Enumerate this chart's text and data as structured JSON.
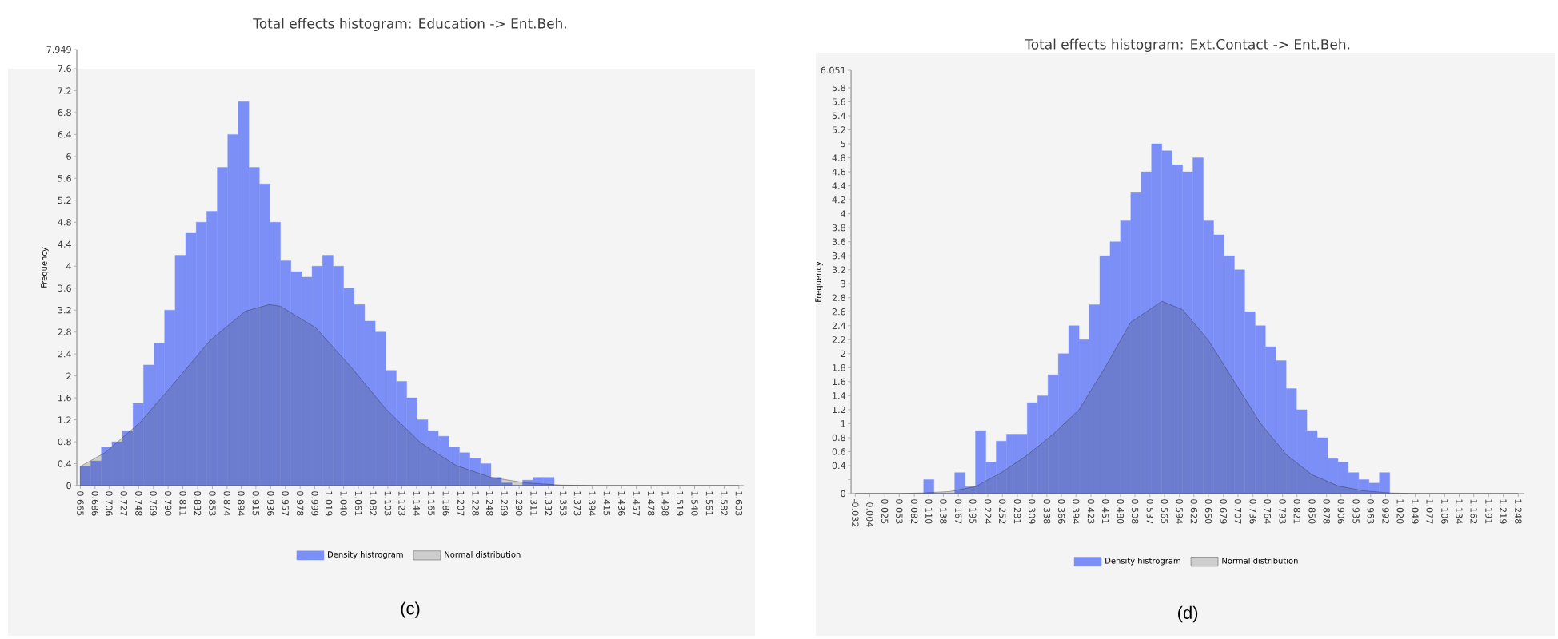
{
  "chart_data": [
    {
      "type": "histogram",
      "title": "Total effects histogram: Education -> Ent.Beh.",
      "ylabel": "Frequency",
      "legend": "bottom",
      "annotations": [
        "(c)"
      ],
      "bins": [
        0.665,
        0.68,
        0.695,
        0.71,
        0.725,
        0.74,
        0.755,
        0.77,
        0.785,
        0.8,
        0.815,
        0.83,
        0.845,
        0.86,
        0.875,
        0.89,
        0.905,
        0.92,
        0.935,
        0.95,
        0.965,
        0.98,
        0.995,
        1.01,
        1.025,
        1.04,
        1.055,
        1.07,
        1.085,
        1.1,
        1.115,
        1.13,
        1.145,
        1.16,
        1.175,
        1.19,
        1.205,
        1.22,
        1.235,
        1.25,
        1.265,
        1.28,
        1.295,
        1.31,
        1.325,
        1.34
      ],
      "series": [
        {
          "name": "Density histrogram",
          "color": "#7b8ff7",
          "values": [
            0.35,
            0.45,
            0.7,
            0.8,
            1.0,
            1.5,
            2.2,
            2.6,
            3.2,
            4.2,
            4.6,
            4.8,
            5.0,
            5.8,
            6.4,
            7.0,
            5.8,
            5.5,
            4.8,
            4.1,
            3.9,
            3.8,
            4.0,
            4.2,
            4.0,
            3.6,
            3.3,
            3.0,
            2.8,
            2.1,
            1.9,
            1.6,
            1.2,
            1.0,
            0.9,
            0.7,
            0.6,
            0.5,
            0.4,
            0.15,
            0.05,
            0,
            0.1,
            0.15,
            0.15
          ]
        },
        {
          "name": "Normal distribution",
          "type": "area",
          "color": "#303030",
          "x": [
            0.665,
            0.7,
            0.75,
            0.8,
            0.85,
            0.9,
            0.934,
            0.95,
            1.0,
            1.05,
            1.1,
            1.15,
            1.2,
            1.25,
            1.3,
            1.35,
            1.4,
            1.603
          ],
          "values": [
            0.35,
            0.6,
            1.15,
            1.89,
            2.65,
            3.18,
            3.3,
            3.27,
            2.88,
            2.17,
            1.4,
            0.78,
            0.37,
            0.15,
            0.05,
            0.01,
            0,
            0
          ]
        }
      ],
      "xlim": [
        0.66,
        1.61
      ],
      "ylim": [
        0,
        7.949
      ],
      "xticks": [
        {
          "value": 0.665,
          "label": "0.665"
        },
        {
          "value": 0.686,
          "label": "0.686"
        },
        {
          "value": 0.706,
          "label": "0.706"
        },
        {
          "value": 0.727,
          "label": "0.727"
        },
        {
          "value": 0.748,
          "label": "0.748"
        },
        {
          "value": 0.769,
          "label": "0.769"
        },
        {
          "value": 0.79,
          "label": "0.790"
        },
        {
          "value": 0.811,
          "label": "0.811"
        },
        {
          "value": 0.832,
          "label": "0.832"
        },
        {
          "value": 0.853,
          "label": "0.853"
        },
        {
          "value": 0.874,
          "label": "0.874"
        },
        {
          "value": 0.894,
          "label": "0.894"
        },
        {
          "value": 0.915,
          "label": "0.915"
        },
        {
          "value": 0.936,
          "label": "0.936"
        },
        {
          "value": 0.957,
          "label": "0.957"
        },
        {
          "value": 0.978,
          "label": "0.978"
        },
        {
          "value": 0.999,
          "label": "0.999"
        },
        {
          "value": 1.019,
          "label": "1.019"
        },
        {
          "value": 1.04,
          "label": "1.040"
        },
        {
          "value": 1.061,
          "label": "1.061"
        },
        {
          "value": 1.082,
          "label": "1.082"
        },
        {
          "value": 1.103,
          "label": "1.103"
        },
        {
          "value": 1.123,
          "label": "1.123"
        },
        {
          "value": 1.144,
          "label": "1.144"
        },
        {
          "value": 1.165,
          "label": "1.165"
        },
        {
          "value": 1.186,
          "label": "1.186"
        },
        {
          "value": 1.207,
          "label": "1.207"
        },
        {
          "value": 1.228,
          "label": "1.228"
        },
        {
          "value": 1.248,
          "label": "1.248"
        },
        {
          "value": 1.269,
          "label": "1.269"
        },
        {
          "value": 1.29,
          "label": "1.290"
        },
        {
          "value": 1.311,
          "label": "1.311"
        },
        {
          "value": 1.332,
          "label": "1.332"
        },
        {
          "value": 1.353,
          "label": "1.353"
        },
        {
          "value": 1.373,
          "label": "1.373"
        },
        {
          "value": 1.394,
          "label": "1.394"
        },
        {
          "value": 1.415,
          "label": "1.415"
        },
        {
          "value": 1.436,
          "label": "1.436"
        },
        {
          "value": 1.457,
          "label": "1.457"
        },
        {
          "value": 1.478,
          "label": "1.478"
        },
        {
          "value": 1.498,
          "label": "1.498"
        },
        {
          "value": 1.519,
          "label": "1.519"
        },
        {
          "value": 1.54,
          "label": "1.540"
        },
        {
          "value": 1.561,
          "label": "1.561"
        },
        {
          "value": 1.582,
          "label": "1.582"
        },
        {
          "value": 1.603,
          "label": "1.603"
        }
      ],
      "yticks": [
        0,
        0.4,
        0.8,
        1.2,
        1.6,
        2,
        2.4,
        2.8,
        3.2,
        3.6,
        4,
        4.4,
        4.8,
        5.2,
        5.6,
        6,
        6.4,
        6.8,
        7.2,
        7.6,
        7.949
      ]
    },
    {
      "type": "histogram",
      "title": "Total effects histogram: Ext.Contact -> Ent.Beh.",
      "ylabel": "Frequency",
      "legend": "bottom",
      "annotations": [
        "(d)"
      ],
      "bins": [
        0.1,
        0.12,
        0.14,
        0.16,
        0.18,
        0.2,
        0.22,
        0.24,
        0.26,
        0.28,
        0.3,
        0.32,
        0.34,
        0.36,
        0.38,
        0.4,
        0.42,
        0.44,
        0.46,
        0.48,
        0.5,
        0.52,
        0.54,
        0.56,
        0.58,
        0.6,
        0.62,
        0.64,
        0.66,
        0.68,
        0.7,
        0.72,
        0.74,
        0.76,
        0.78,
        0.8,
        0.82,
        0.84,
        0.86,
        0.88,
        0.9,
        0.92,
        0.94,
        0.96,
        0.98,
        1.0
      ],
      "series": [
        {
          "name": "Density histrogram",
          "color": "#7b8ff7",
          "values": [
            0.2,
            0,
            0,
            0.3,
            0.1,
            0.9,
            0.45,
            0.75,
            0.85,
            0.85,
            1.3,
            1.4,
            1.7,
            2.0,
            2.4,
            2.2,
            2.7,
            3.4,
            3.6,
            3.9,
            4.3,
            4.6,
            5.0,
            4.9,
            4.7,
            4.6,
            4.8,
            3.9,
            3.7,
            3.4,
            3.2,
            2.6,
            2.4,
            2.1,
            1.9,
            1.5,
            1.2,
            0.9,
            0.8,
            0.5,
            0.45,
            0.3,
            0.2,
            0.15,
            0.3
          ]
        },
        {
          "name": "Normal distribution",
          "type": "area",
          "color": "#303030",
          "x": [
            -0.032,
            0.05,
            0.1,
            0.15,
            0.2,
            0.25,
            0.3,
            0.35,
            0.4,
            0.45,
            0.5,
            0.56,
            0.6,
            0.65,
            0.7,
            0.75,
            0.8,
            0.85,
            0.9,
            0.95,
            1.0,
            1.05,
            1.248
          ],
          "values": [
            0,
            0,
            0.01,
            0.03,
            0.1,
            0.3,
            0.55,
            0.85,
            1.2,
            1.8,
            2.45,
            2.75,
            2.63,
            2.19,
            1.6,
            1.01,
            0.56,
            0.27,
            0.11,
            0.04,
            0.01,
            0,
            0
          ]
        }
      ],
      "xlim": [
        -0.04,
        1.26
      ],
      "ylim": [
        0,
        6.051
      ],
      "xticks": [
        {
          "value": -0.032,
          "label": "-0.032"
        },
        {
          "value": -0.004,
          "label": "-0.004"
        },
        {
          "value": 0.025,
          "label": "0.025"
        },
        {
          "value": 0.053,
          "label": "0.053"
        },
        {
          "value": 0.082,
          "label": "0.082"
        },
        {
          "value": 0.11,
          "label": "0.110"
        },
        {
          "value": 0.138,
          "label": "0.138"
        },
        {
          "value": 0.167,
          "label": "0.167"
        },
        {
          "value": 0.195,
          "label": "0.195"
        },
        {
          "value": 0.224,
          "label": "0.224"
        },
        {
          "value": 0.252,
          "label": "0.252"
        },
        {
          "value": 0.281,
          "label": "0.281"
        },
        {
          "value": 0.309,
          "label": "0.309"
        },
        {
          "value": 0.338,
          "label": "0.338"
        },
        {
          "value": 0.366,
          "label": "0.366"
        },
        {
          "value": 0.394,
          "label": "0.394"
        },
        {
          "value": 0.423,
          "label": "0.423"
        },
        {
          "value": 0.451,
          "label": "0.451"
        },
        {
          "value": 0.48,
          "label": "0.480"
        },
        {
          "value": 0.508,
          "label": "0.508"
        },
        {
          "value": 0.537,
          "label": "0.537"
        },
        {
          "value": 0.565,
          "label": "0.565"
        },
        {
          "value": 0.594,
          "label": "0.594"
        },
        {
          "value": 0.622,
          "label": "0.622"
        },
        {
          "value": 0.65,
          "label": "0.650"
        },
        {
          "value": 0.679,
          "label": "0.679"
        },
        {
          "value": 0.707,
          "label": "0.707"
        },
        {
          "value": 0.736,
          "label": "0.736"
        },
        {
          "value": 0.764,
          "label": "0.764"
        },
        {
          "value": 0.793,
          "label": "0.793"
        },
        {
          "value": 0.821,
          "label": "0.821"
        },
        {
          "value": 0.85,
          "label": "0.850"
        },
        {
          "value": 0.878,
          "label": "0.878"
        },
        {
          "value": 0.906,
          "label": "0.906"
        },
        {
          "value": 0.935,
          "label": "0.935"
        },
        {
          "value": 0.963,
          "label": "0.963"
        },
        {
          "value": 0.992,
          "label": "0.992"
        },
        {
          "value": 1.02,
          "label": "1.020"
        },
        {
          "value": 1.049,
          "label": "1.049"
        },
        {
          "value": 1.077,
          "label": "1.077"
        },
        {
          "value": 1.106,
          "label": "1.106"
        },
        {
          "value": 1.134,
          "label": "1.134"
        },
        {
          "value": 1.162,
          "label": "1.162"
        },
        {
          "value": 1.191,
          "label": "1.191"
        },
        {
          "value": 1.219,
          "label": "1.219"
        },
        {
          "value": 1.248,
          "label": "1.248"
        }
      ],
      "yticks": [
        0,
        {
          "value": 0.2,
          "label": null
        },
        0.4,
        0.6,
        0.8,
        1,
        1.2,
        1.4,
        1.6,
        1.8,
        2,
        2.2,
        2.4,
        2.6,
        2.8,
        3,
        3.2,
        3.4,
        3.6,
        3.8,
        4,
        4.2,
        4.4,
        4.6,
        4.8,
        5,
        5.2,
        5.4,
        5.6,
        5.8,
        6.051
      ]
    }
  ]
}
